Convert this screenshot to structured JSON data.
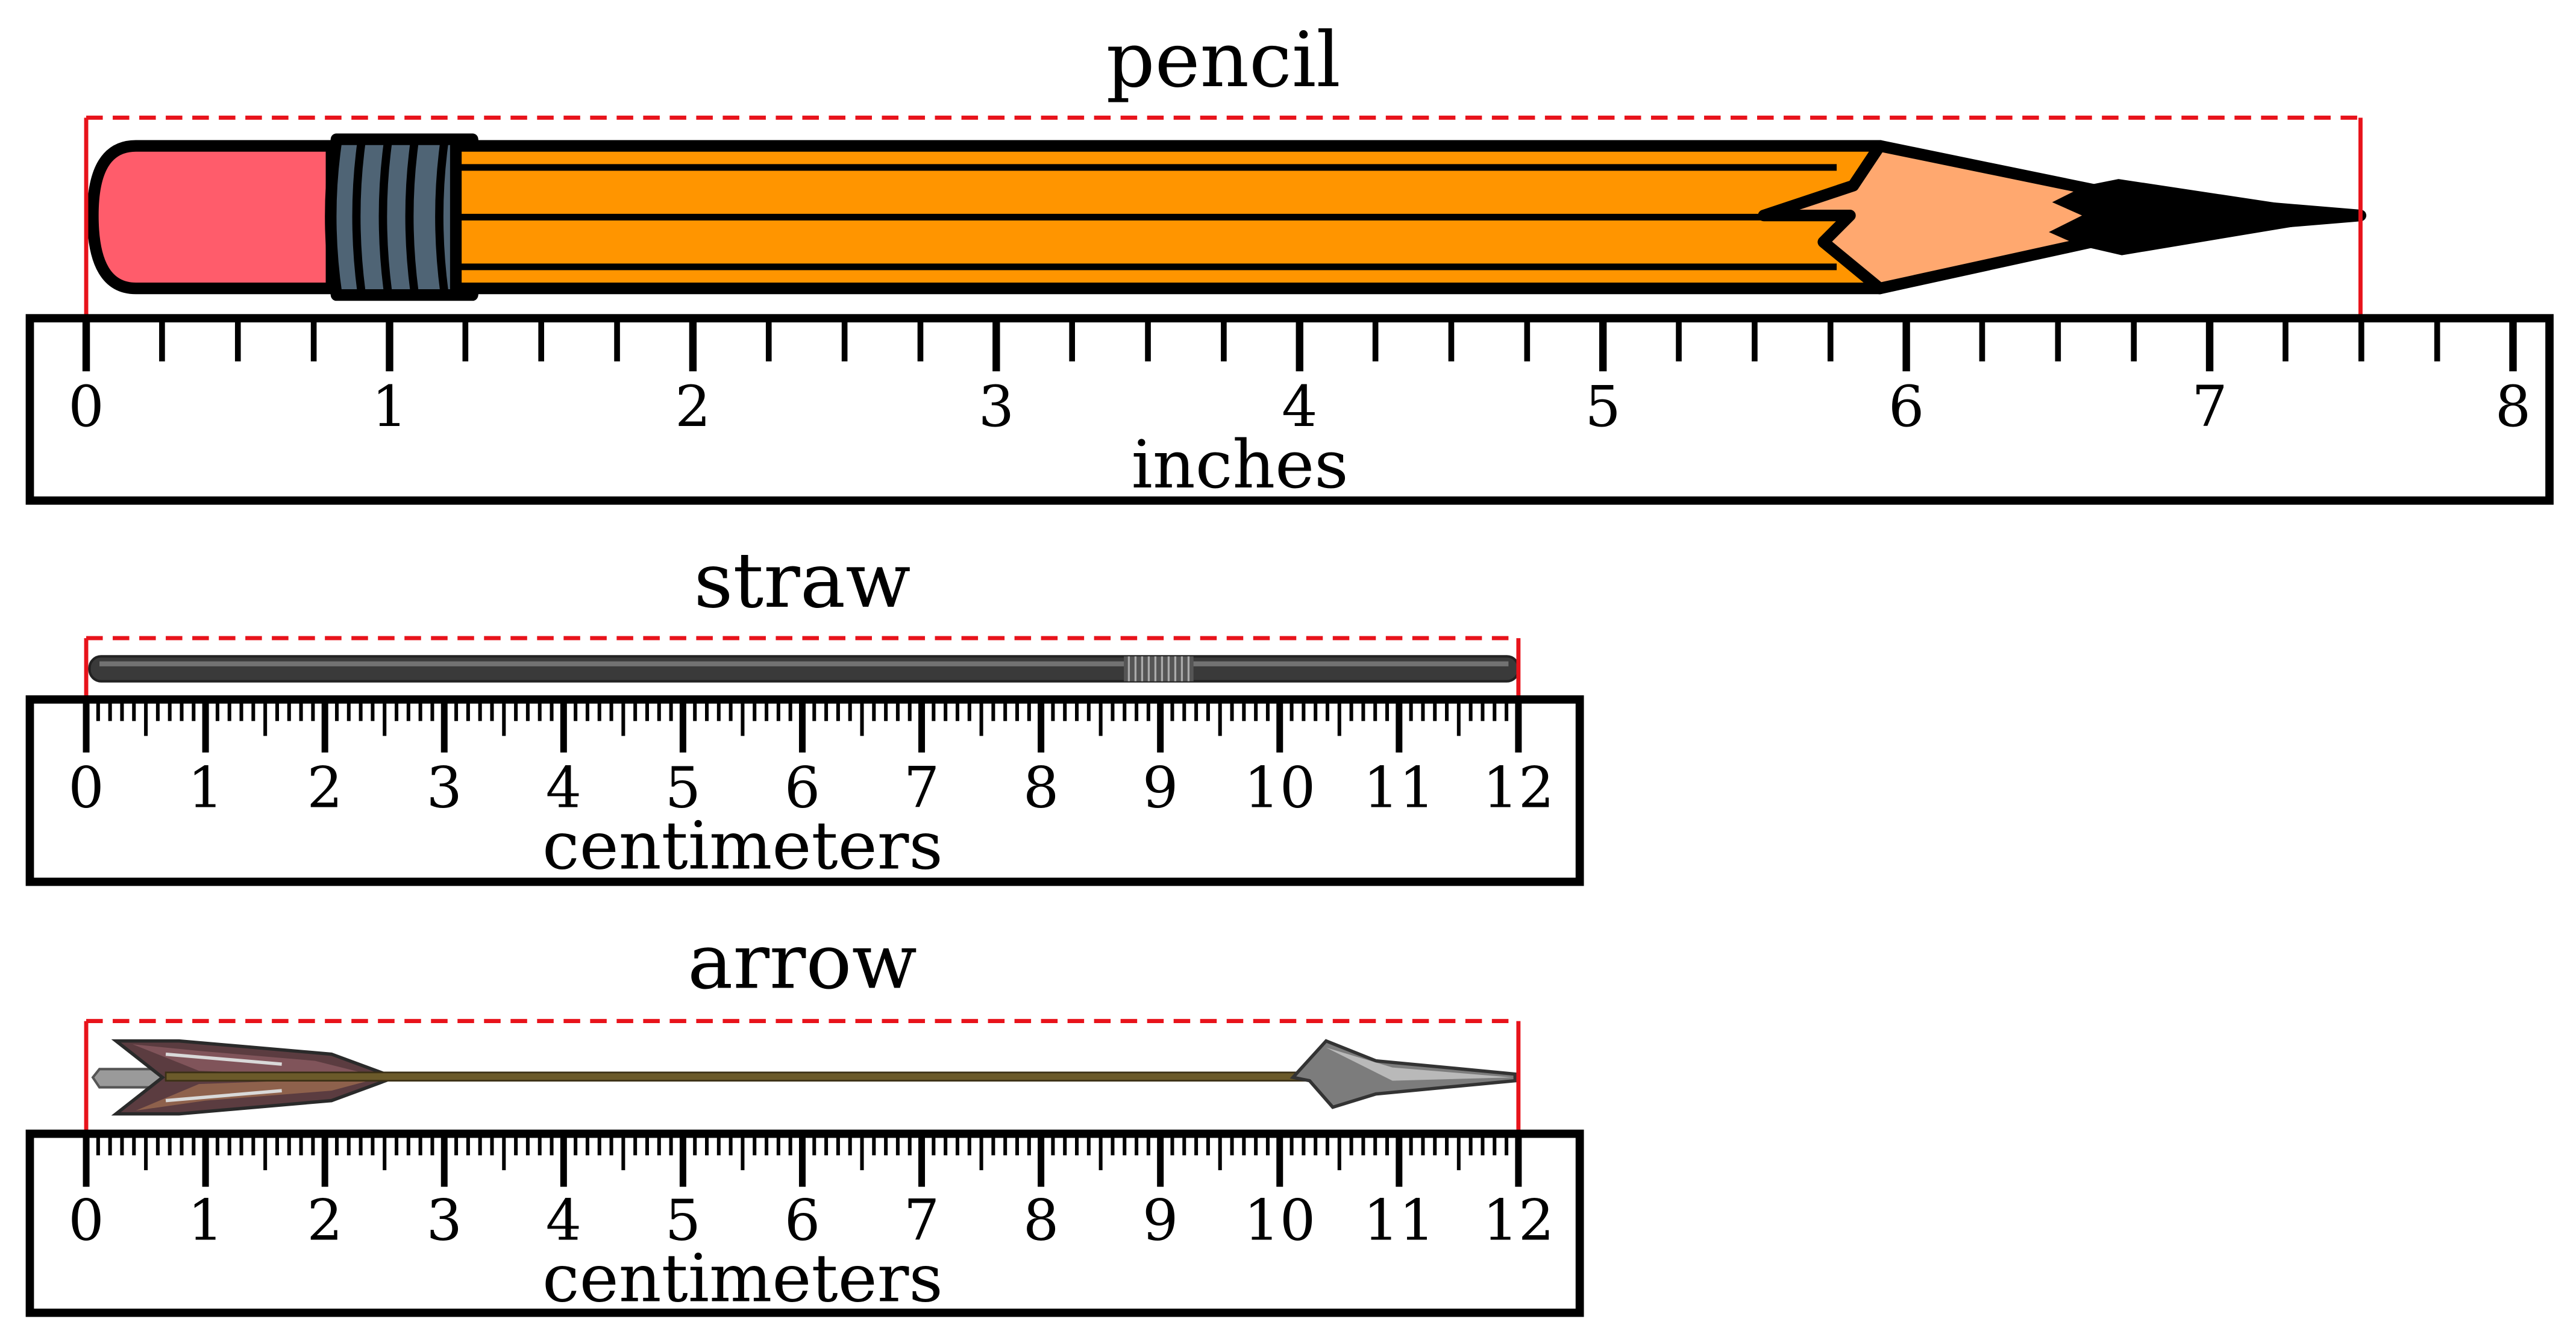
{
  "colors": {
    "bracket": "#e8131b",
    "ruler_stroke": "#000000",
    "pencil_body": "#ff9500",
    "pencil_eraser": "#ff5c6b",
    "pencil_ferrule": "#4f6475",
    "pencil_wood": "#ffa86f",
    "pencil_lead": "#000000"
  },
  "objects": [
    {
      "id": "pencil",
      "title": "pencil",
      "icon": "pencil-icon",
      "ruler": {
        "unit_label": "inches",
        "max": 8,
        "minor_per_unit": 4,
        "labels": [
          "0",
          "1",
          "2",
          "3",
          "4",
          "5",
          "6",
          "7",
          "8"
        ]
      },
      "measured_length": 7.5
    },
    {
      "id": "straw",
      "title": "straw",
      "icon": "straw-icon",
      "ruler": {
        "unit_label": "centimeters",
        "max": 12,
        "minor_per_unit": 10,
        "labels": [
          "0",
          "1",
          "2",
          "3",
          "4",
          "5",
          "6",
          "7",
          "8",
          "9",
          "10",
          "11",
          "12"
        ]
      },
      "measured_length": 12
    },
    {
      "id": "arrow",
      "title": "arrow",
      "icon": "arrow-icon",
      "ruler": {
        "unit_label": "centimeters",
        "max": 12,
        "minor_per_unit": 10,
        "labels": [
          "0",
          "1",
          "2",
          "3",
          "4",
          "5",
          "6",
          "7",
          "8",
          "9",
          "10",
          "11",
          "12"
        ]
      },
      "measured_length": 12
    }
  ]
}
